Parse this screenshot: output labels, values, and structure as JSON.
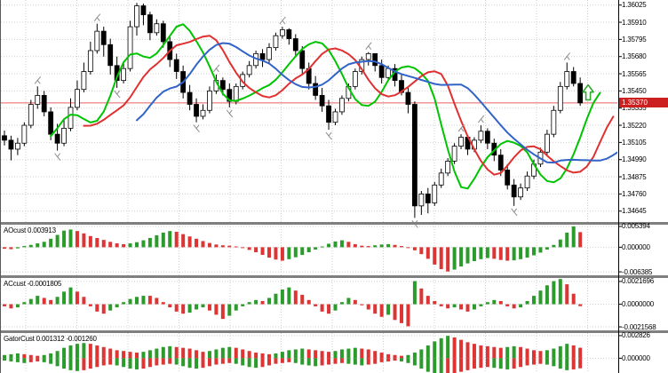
{
  "colors": {
    "background": "#ffffff",
    "grid": "#cfcfcf",
    "candle_up": "#ffffff",
    "candle_down": "#000000",
    "candle_border": "#000000",
    "lips_green": "#00c400",
    "teeth_red": "#e03030",
    "jaw_blue": "#3263c8",
    "hist_up": "#2b9b2b",
    "hist_down": "#dd3434",
    "price_line": "#e86060",
    "price_box": "#cc2020",
    "fractal": "#8c8c8c",
    "signal_arrow": "#2fa82f",
    "separator": "#7f7f7f",
    "axis_text": "#000000"
  },
  "chart_data": {
    "type": "candlestick",
    "legend_position": "none",
    "grid": "dotted",
    "price_axis": {
      "labels": [
        "1.36025",
        "1.35910",
        "1.35795",
        "1.35680",
        "1.35565",
        "1.35450",
        "1.35335",
        "1.35220",
        "1.35105",
        "1.34990",
        "1.34875",
        "1.34760",
        "1.34645"
      ],
      "ylim": [
        1.34572,
        1.36059
      ],
      "current_price": "1.35370"
    },
    "overlays": [
      "alligator-lips-green",
      "alligator-teeth-red",
      "alligator-jaw-blue",
      "fractal-marks",
      "current-price-line"
    ],
    "signal_arrow": {
      "index": 88.2,
      "price_tip": 1.3549,
      "price_base": 1.3539
    },
    "candles": [
      [
        1.3515,
        1.35185,
        1.35085,
        1.3512
      ],
      [
        1.3512,
        1.3515,
        1.34985,
        1.3506
      ],
      [
        1.3506,
        1.35135,
        1.3502,
        1.351
      ],
      [
        1.351,
        1.3524,
        1.3508,
        1.3522
      ],
      [
        1.3522,
        1.3539,
        1.352,
        1.3536
      ],
      [
        1.3536,
        1.3548,
        1.3533,
        1.3542
      ],
      [
        1.3542,
        1.3545,
        1.3528,
        1.3531
      ],
      [
        1.3531,
        1.3534,
        1.3512,
        1.3516
      ],
      [
        1.3516,
        1.3523,
        1.3505,
        1.351
      ],
      [
        1.351,
        1.3526,
        1.3508,
        1.352
      ],
      [
        1.352,
        1.354,
        1.3518,
        1.3534
      ],
      [
        1.3534,
        1.3552,
        1.3532,
        1.3546
      ],
      [
        1.3546,
        1.3564,
        1.3544,
        1.3558
      ],
      [
        1.3558,
        1.3578,
        1.3556,
        1.3572
      ],
      [
        1.3572,
        1.359,
        1.357,
        1.3585
      ],
      [
        1.3585,
        1.3588,
        1.3568,
        1.3576
      ],
      [
        1.3576,
        1.358,
        1.3556,
        1.3562
      ],
      [
        1.3562,
        1.3568,
        1.3547,
        1.3552
      ],
      [
        1.3552,
        1.3564,
        1.355,
        1.356
      ],
      [
        1.356,
        1.3592,
        1.3558,
        1.3588
      ],
      [
        1.3588,
        1.3604,
        1.3582,
        1.3602
      ],
      [
        1.3602,
        1.36035,
        1.3589,
        1.3596
      ],
      [
        1.3596,
        1.3598,
        1.3579,
        1.3584
      ],
      [
        1.3584,
        1.3593,
        1.3582,
        1.359
      ],
      [
        1.359,
        1.3592,
        1.3574,
        1.3578
      ],
      [
        1.3578,
        1.3581,
        1.3561,
        1.3566
      ],
      [
        1.3566,
        1.357,
        1.3553,
        1.3558
      ],
      [
        1.3558,
        1.3562,
        1.354,
        1.3544
      ],
      [
        1.3544,
        1.3549,
        1.3532,
        1.3536
      ],
      [
        1.3536,
        1.354,
        1.3524,
        1.3528
      ],
      [
        1.3528,
        1.3536,
        1.3526,
        1.3532
      ],
      [
        1.3532,
        1.3548,
        1.353,
        1.3545
      ],
      [
        1.3545,
        1.3556,
        1.3543,
        1.3552
      ],
      [
        1.3552,
        1.3554,
        1.3542,
        1.3546
      ],
      [
        1.3546,
        1.355,
        1.3534,
        1.3538
      ],
      [
        1.3538,
        1.355,
        1.3536,
        1.3548
      ],
      [
        1.3548,
        1.3558,
        1.3546,
        1.3556
      ],
      [
        1.3556,
        1.3565,
        1.3554,
        1.3562
      ],
      [
        1.3562,
        1.3572,
        1.356,
        1.357
      ],
      [
        1.357,
        1.3573,
        1.3561,
        1.3566
      ],
      [
        1.3566,
        1.3577,
        1.3564,
        1.3574
      ],
      [
        1.3574,
        1.3584,
        1.3572,
        1.3582
      ],
      [
        1.3582,
        1.3588,
        1.358,
        1.3586
      ],
      [
        1.3586,
        1.3587,
        1.3576,
        1.358
      ],
      [
        1.358,
        1.3583,
        1.3568,
        1.3572
      ],
      [
        1.3572,
        1.3575,
        1.3556,
        1.356
      ],
      [
        1.356,
        1.3564,
        1.3546,
        1.355
      ],
      [
        1.355,
        1.3555,
        1.3539,
        1.3542
      ],
      [
        1.3542,
        1.3547,
        1.3531,
        1.3535
      ],
      [
        1.3535,
        1.3539,
        1.3519,
        1.3524
      ],
      [
        1.3524,
        1.3533,
        1.3522,
        1.3531
      ],
      [
        1.3531,
        1.3542,
        1.3529,
        1.354
      ],
      [
        1.354,
        1.355,
        1.3538,
        1.3548
      ],
      [
        1.3548,
        1.356,
        1.3546,
        1.3558
      ],
      [
        1.3558,
        1.3568,
        1.3556,
        1.3566
      ],
      [
        1.3566,
        1.3571,
        1.3562,
        1.357
      ],
      [
        1.357,
        1.357,
        1.3558,
        1.3562
      ],
      [
        1.3562,
        1.3566,
        1.355,
        1.3554
      ],
      [
        1.3554,
        1.3562,
        1.3552,
        1.356
      ],
      [
        1.356,
        1.3563,
        1.3548,
        1.3552
      ],
      [
        1.3552,
        1.3556,
        1.3542,
        1.3544
      ],
      [
        1.3544,
        1.3548,
        1.353,
        1.3536
      ],
      [
        1.3536,
        1.3538,
        1.346,
        1.3468
      ],
      [
        1.3468,
        1.3478,
        1.3462,
        1.3476
      ],
      [
        1.3476,
        1.348,
        1.3463,
        1.347
      ],
      [
        1.347,
        1.3484,
        1.3468,
        1.3482
      ],
      [
        1.3482,
        1.3493,
        1.348,
        1.349
      ],
      [
        1.349,
        1.35,
        1.3488,
        1.3498
      ],
      [
        1.3498,
        1.351,
        1.3496,
        1.3508
      ],
      [
        1.3508,
        1.3516,
        1.3506,
        1.3514
      ],
      [
        1.3514,
        1.3515,
        1.3502,
        1.3506
      ],
      [
        1.3506,
        1.3514,
        1.3504,
        1.3512
      ],
      [
        1.3512,
        1.3522,
        1.351,
        1.3518
      ],
      [
        1.3518,
        1.352,
        1.3506,
        1.351
      ],
      [
        1.351,
        1.3513,
        1.3498,
        1.3502
      ],
      [
        1.3502,
        1.3506,
        1.3488,
        1.3492
      ],
      [
        1.3492,
        1.3496,
        1.3479,
        1.3482
      ],
      [
        1.3482,
        1.3486,
        1.3468,
        1.3474
      ],
      [
        1.3474,
        1.3483,
        1.3472,
        1.348
      ],
      [
        1.348,
        1.3491,
        1.3478,
        1.3488
      ],
      [
        1.3488,
        1.3499,
        1.3486,
        1.3496
      ],
      [
        1.3496,
        1.3507,
        1.3494,
        1.3504
      ],
      [
        1.3504,
        1.3519,
        1.3502,
        1.3516
      ],
      [
        1.3516,
        1.3535,
        1.3514,
        1.3532
      ],
      [
        1.3532,
        1.3551,
        1.353,
        1.3548
      ],
      [
        1.3548,
        1.3564,
        1.3546,
        1.3558
      ],
      [
        1.3558,
        1.3561,
        1.3548,
        1.355
      ],
      [
        1.355,
        1.3554,
        1.3535,
        1.3537
      ]
    ],
    "panels": [
      {
        "id": "ao",
        "label": "AOcust 0.003913",
        "axis_labels": [
          "0.005394",
          "0.000000",
          "-0.006385"
        ],
        "ylim": [
          -0.00729,
          0.00585
        ],
        "color_rule": "rising-green",
        "values": [
          -0.0004,
          -0.0005,
          -0.0003,
          0.0003,
          0.0006,
          0.001,
          0.0014,
          0.0022,
          0.0032,
          0.0043,
          0.0046,
          0.0042,
          0.0036,
          0.0029,
          0.0024,
          0.0019,
          0.0014,
          0.001,
          0.0008,
          0.001,
          0.0013,
          0.0018,
          0.0024,
          0.0031,
          0.0038,
          0.0042,
          0.004,
          0.0034,
          0.0028,
          0.0022,
          0.0016,
          0.0011,
          0.0007,
          0.0005,
          0.0004,
          0.0002,
          -0.0002,
          -0.0007,
          -0.0013,
          -0.002,
          -0.0027,
          -0.0032,
          -0.0035,
          -0.0031,
          -0.0026,
          -0.002,
          -0.0013,
          -0.0006,
          0.0002,
          0.0009,
          0.0015,
          0.0018,
          0.0014,
          0.0008,
          0.0004,
          0.0003,
          0.0005,
          0.0007,
          0.0008,
          0.0006,
          0.0003,
          -0.0001,
          -0.0008,
          -0.0018,
          -0.003,
          -0.0045,
          -0.0057,
          -0.0063,
          -0.0058,
          -0.005,
          -0.0042,
          -0.0036,
          -0.0031,
          -0.0028,
          -0.003,
          -0.0033,
          -0.0035,
          -0.0034,
          -0.0031,
          -0.0027,
          -0.0021,
          -0.0014,
          -0.0006,
          0.0006,
          0.002,
          0.0038,
          0.0054,
          0.003913
        ]
      },
      {
        "id": "ac",
        "label": "ACcust -0.0001805",
        "axis_labels": [
          "0.0021696",
          "0.0000000",
          "-0.0021568"
        ],
        "ylim": [
          -0.00249,
          0.0025
        ],
        "color_rule": "rising-green",
        "values": [
          -0.0002,
          -0.0004,
          -0.0003,
          0.0002,
          0.0005,
          0.0008,
          0.0006,
          0.0004,
          0.0007,
          0.0012,
          0.0016,
          0.0012,
          0.0007,
          -0.0002,
          -0.0007,
          -0.0009,
          -0.0006,
          -0.0003,
          0.0002,
          0.0005,
          0.0007,
          0.0008,
          0.0008,
          0.0006,
          0.0002,
          -0.0003,
          -0.0007,
          -0.0009,
          -0.0008,
          -0.0005,
          -0.0003,
          -0.0006,
          -0.001,
          -0.0014,
          -0.0011,
          -0.0006,
          -0.0002,
          0.0002,
          0.0004,
          0.0003,
          0.0006,
          0.001,
          0.0014,
          0.0016,
          0.0013,
          0.0009,
          0.0004,
          -0.0002,
          -0.0007,
          -0.0009,
          -0.0006,
          0.0002,
          0.0006,
          0.0004,
          -0.0001,
          -0.0005,
          -0.0009,
          -0.0012,
          -0.001,
          -0.0015,
          -0.0018,
          -0.0021,
          0.0022,
          0.0015,
          0.0008,
          0.0003,
          -0.0002,
          -0.0004,
          -0.0003,
          -0.0005,
          -0.0007,
          -0.0005,
          -0.0002,
          0.0002,
          0.0004,
          0.0003,
          -0.0002,
          -0.0004,
          -0.0003,
          0.0003,
          0.0008,
          0.0013,
          0.0018,
          0.0022,
          0.0024,
          0.0019,
          0.001,
          -0.0001805
        ]
      },
      {
        "id": "gator",
        "label": "GatorCust 0.001312 -0.001260",
        "axis_labels": [
          "0.002826",
          "0.000000"
        ],
        "ylim": [
          -0.00185,
          0.00315
        ],
        "color_rule": "growing-green",
        "up": [
          0.0004,
          0.0005,
          0.0006,
          0.0005,
          0.0004,
          0.0003,
          0.0004,
          0.0006,
          0.0009,
          0.0013,
          0.0016,
          0.0018,
          0.0019,
          0.0018,
          0.0016,
          0.0014,
          0.0012,
          0.001,
          0.0009,
          0.0008,
          0.0007,
          0.0008,
          0.001,
          0.0012,
          0.0014,
          0.0015,
          0.0014,
          0.0013,
          0.0012,
          0.001,
          0.0008,
          0.0009,
          0.0011,
          0.0013,
          0.0014,
          0.0013,
          0.0011,
          0.0009,
          0.0007,
          0.0006,
          0.0005,
          0.0006,
          0.0008,
          0.001,
          0.0011,
          0.0012,
          0.0011,
          0.001,
          0.0009,
          0.0008,
          0.0009,
          0.0011,
          0.0012,
          0.0013,
          0.0012,
          0.0011,
          0.0009,
          0.0007,
          0.0005,
          0.0004,
          0.0003,
          0.0004,
          0.0007,
          0.0011,
          0.0016,
          0.0021,
          0.0025,
          0.0028,
          0.0026,
          0.0023,
          0.002,
          0.0018,
          0.0016,
          0.0015,
          0.0014,
          0.0013,
          0.0014,
          0.0015,
          0.0014,
          0.0012,
          0.001,
          0.0009,
          0.001,
          0.0012,
          0.0015,
          0.0018,
          0.0016,
          0.001312
        ],
        "down": [
          -0.0003,
          -0.0004,
          -0.0005,
          -0.0006,
          -0.0005,
          -0.0004,
          -0.0005,
          -0.0007,
          -0.001,
          -0.0013,
          -0.0015,
          -0.0016,
          -0.0015,
          -0.0013,
          -0.0011,
          -0.0009,
          -0.0008,
          -0.0009,
          -0.0011,
          -0.0013,
          -0.0014,
          -0.0013,
          -0.0011,
          -0.0009,
          -0.0008,
          -0.0007,
          -0.0008,
          -0.001,
          -0.0012,
          -0.0013,
          -0.0012,
          -0.001,
          -0.0008,
          -0.0007,
          -0.0006,
          -0.0007,
          -0.0009,
          -0.0011,
          -0.0012,
          -0.0011,
          -0.0009,
          -0.0007,
          -0.0006,
          -0.0005,
          -0.0006,
          -0.0008,
          -0.0009,
          -0.001,
          -0.0009,
          -0.0008,
          -0.0007,
          -0.0006,
          -0.0007,
          -0.0008,
          -0.0009,
          -0.0008,
          -0.0007,
          -0.0005,
          -0.0004,
          -0.0003,
          -0.0004,
          -0.0006,
          -0.0009,
          -0.0013,
          -0.0017,
          -0.002,
          -0.0022,
          -0.0021,
          -0.0019,
          -0.0017,
          -0.0015,
          -0.0013,
          -0.0012,
          -0.0011,
          -0.0012,
          -0.0013,
          -0.0014,
          -0.0013,
          -0.0011,
          -0.0009,
          -0.0008,
          -0.0007,
          -0.0008,
          -0.001,
          -0.0013,
          -0.0015,
          -0.0014,
          -0.00126
        ]
      }
    ]
  }
}
